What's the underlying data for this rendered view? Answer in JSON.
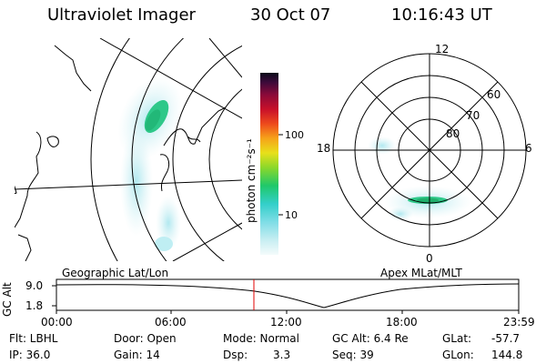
{
  "header": {
    "instrument": "Ultraviolet Imager",
    "date": "30 Oct 07",
    "time": "10:16:43 UT"
  },
  "geo_panel": {
    "label": "Geographic Lat/Lon"
  },
  "mag_panel": {
    "label": "Apex MLat/MLT",
    "mlt_labels": {
      "top": "12",
      "left": "18",
      "right": "6",
      "bottom": "0"
    },
    "lat_labels": [
      "60",
      "70",
      "80"
    ]
  },
  "colorbar": {
    "unit_label": "photon cm⁻²s⁻¹",
    "ticks": [
      "100",
      "10"
    ]
  },
  "alt_plot": {
    "ylabel": "GC Alt",
    "yticks": [
      "9.0",
      "1.8"
    ],
    "xticks": [
      "00:00",
      "06:00",
      "12:00",
      "18:00",
      "23:59"
    ],
    "current_marker": "10:16"
  },
  "info": {
    "flt": "Flt: LBHL",
    "ip": "IP: 36.0",
    "door": "Door: Open",
    "gain": "Gain: 14",
    "mode": "Mode: Normal",
    "dsp_label": "Dsp:",
    "dsp_value": "3.3",
    "gcalt": "GC Alt: 6.4 Re",
    "seq": "Seq: 39",
    "glat_label": "GLat:",
    "glat_value": "-57.7",
    "glon_label": "GLon:",
    "glon_value": "144.8"
  }
}
